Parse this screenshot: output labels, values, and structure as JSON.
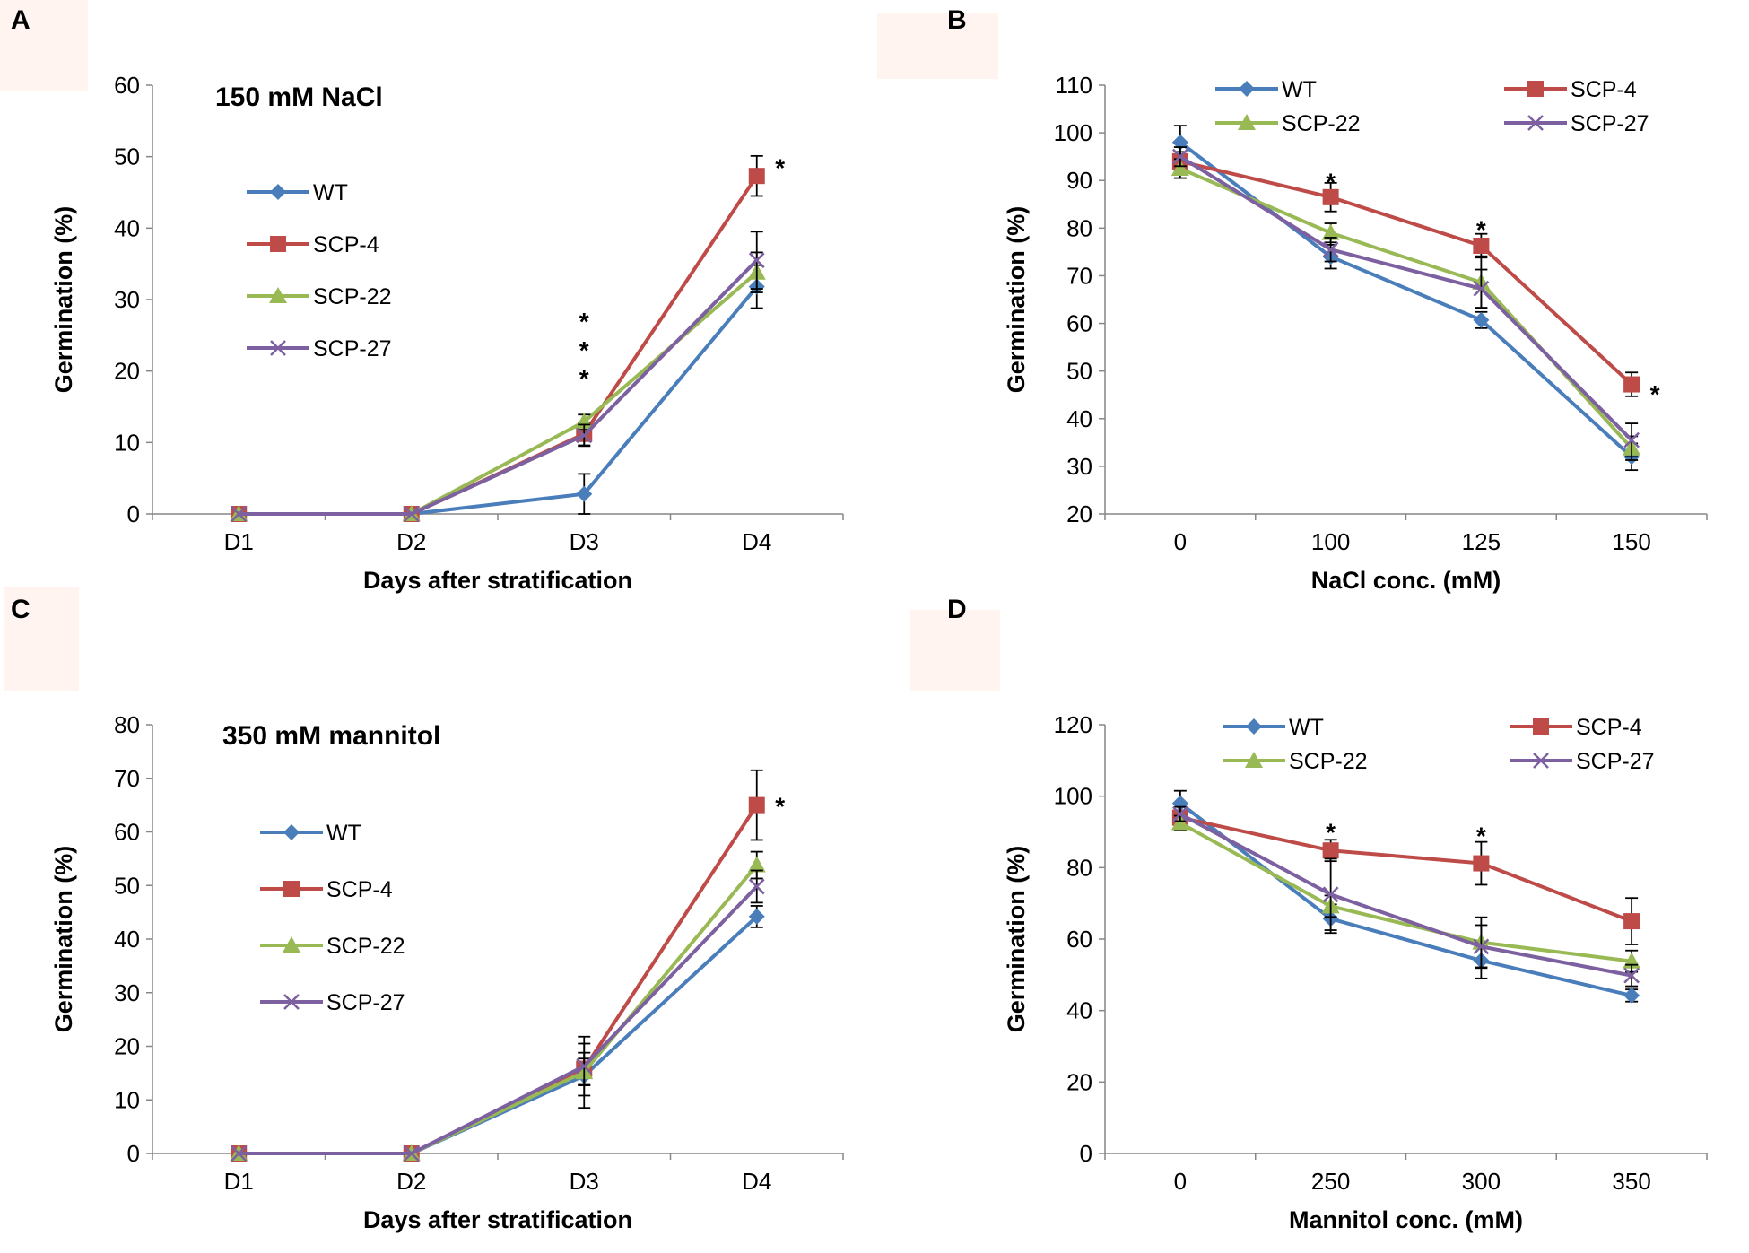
{
  "colors": {
    "WT": "#4a7ebb",
    "SCP-4": "#be4b48",
    "SCP-22": "#98b954",
    "SCP-27": "#7d60a0",
    "axis": "#868686",
    "panel_bg": "#fff4f0"
  },
  "chart_data": [
    {
      "id": "A",
      "panel_label": "A",
      "type": "line",
      "title": "150 mM NaCl",
      "xlabel": "Days after stratification",
      "ylabel": "Germination (%)",
      "categories": [
        "D1",
        "D2",
        "D3",
        "D4"
      ],
      "ylim": [
        0,
        60
      ],
      "ytick_step": 10,
      "legend_position": "left-stacked",
      "series": [
        {
          "name": "WT",
          "marker": "diamond",
          "values": [
            0,
            0,
            2.8,
            31.8
          ],
          "errors": [
            0,
            0,
            2.8,
            3
          ]
        },
        {
          "name": "SCP-4",
          "marker": "square",
          "values": [
            0,
            0,
            11.2,
            47.3
          ],
          "errors": [
            0,
            0,
            1.6,
            2.8
          ]
        },
        {
          "name": "SCP-22",
          "marker": "triangle",
          "values": [
            0,
            0,
            12.9,
            33.8
          ],
          "errors": [
            0,
            0,
            1,
            2.8
          ]
        },
        {
          "name": "SCP-27",
          "marker": "x",
          "values": [
            0,
            0,
            11,
            35.5
          ],
          "errors": [
            0,
            0,
            1.5,
            4
          ]
        }
      ],
      "annotations": [
        {
          "x": "D3",
          "y": 27.5,
          "text": "*"
        },
        {
          "x": "D3",
          "y": 23.5,
          "text": "*"
        },
        {
          "x": "D3",
          "y": 19.5,
          "text": "*"
        },
        {
          "x": "D4",
          "y": 49,
          "text": "*",
          "offset": "right"
        }
      ]
    },
    {
      "id": "B",
      "panel_label": "B",
      "type": "line",
      "title": "",
      "xlabel": "NaCl conc. (mM)",
      "ylabel": "Germination (%)",
      "categories": [
        "0",
        "100",
        "125",
        "150"
      ],
      "ylim": [
        20,
        110
      ],
      "ytick_step": 10,
      "legend_position": "top-two-columns",
      "series": [
        {
          "name": "WT",
          "marker": "diamond",
          "values": [
            98,
            74,
            60.7,
            32
          ],
          "errors": [
            3.5,
            2.5,
            1.7,
            2.8
          ]
        },
        {
          "name": "SCP-4",
          "marker": "square",
          "values": [
            94,
            86.5,
            76.3,
            47.2
          ],
          "errors": [
            2,
            3,
            2.5,
            2.5
          ]
        },
        {
          "name": "SCP-22",
          "marker": "triangle",
          "values": [
            92.5,
            79,
            68.6,
            33.8
          ],
          "errors": [
            2,
            2,
            5.5,
            2.5
          ]
        },
        {
          "name": "SCP-27",
          "marker": "x",
          "values": [
            95,
            75.5,
            67.3,
            35.5
          ],
          "errors": [
            2,
            2.5,
            4,
            3.5
          ]
        }
      ],
      "annotations": [
        {
          "x": "100",
          "y": 90.5,
          "text": "*"
        },
        {
          "x": "125",
          "y": 80.5,
          "text": "*"
        },
        {
          "x": "150",
          "y": 46,
          "text": "*",
          "offset": "right"
        }
      ]
    },
    {
      "id": "C",
      "panel_label": "C",
      "type": "line",
      "title": "350 mM mannitol",
      "xlabel": "Days after stratification",
      "ylabel": "Germination (%)",
      "categories": [
        "D1",
        "D2",
        "D3",
        "D4"
      ],
      "ylim": [
        0,
        80
      ],
      "ytick_step": 10,
      "legend_position": "left-stacked",
      "series": [
        {
          "name": "WT",
          "marker": "diamond",
          "values": [
            0,
            0,
            14.5,
            44.2
          ],
          "errors": [
            0,
            0,
            6,
            2
          ]
        },
        {
          "name": "SCP-4",
          "marker": "square",
          "values": [
            0,
            0,
            15.8,
            65
          ],
          "errors": [
            0,
            0,
            3,
            6.5
          ]
        },
        {
          "name": "SCP-22",
          "marker": "triangle",
          "values": [
            0,
            0,
            15.2,
            53.8
          ],
          "errors": [
            0,
            0,
            2.5,
            2.5
          ]
        },
        {
          "name": "SCP-27",
          "marker": "x",
          "values": [
            0,
            0,
            16.3,
            49.8
          ],
          "errors": [
            0,
            0,
            5.5,
            3
          ]
        }
      ],
      "annotations": [
        {
          "x": "D4",
          "y": 65.5,
          "text": "*",
          "offset": "right"
        }
      ]
    },
    {
      "id": "D",
      "panel_label": "D",
      "type": "line",
      "title": "",
      "xlabel": "Mannitol conc. (mM)",
      "ylabel": "Germination (%)",
      "categories": [
        "0",
        "250",
        "300",
        "350"
      ],
      "ylim": [
        0,
        120
      ],
      "ytick_step": 20,
      "legend_position": "top-two-columns",
      "series": [
        {
          "name": "WT",
          "marker": "diamond",
          "values": [
            98,
            65.7,
            54,
            44.2
          ],
          "errors": [
            3.5,
            4,
            5,
            1.7
          ]
        },
        {
          "name": "SCP-4",
          "marker": "square",
          "values": [
            94,
            84.8,
            81.2,
            65
          ],
          "errors": [
            2,
            3,
            6,
            6.5
          ]
        },
        {
          "name": "SCP-22",
          "marker": "triangle",
          "values": [
            92.5,
            69.2,
            59.1,
            53.8
          ],
          "errors": [
            2,
            3,
            7,
            3
          ]
        },
        {
          "name": "SCP-27",
          "marker": "x",
          "values": [
            95,
            72.5,
            57.9,
            49.8
          ],
          "errors": [
            2,
            10,
            6,
            3
          ]
        }
      ],
      "annotations": [
        {
          "x": "250",
          "y": 91,
          "text": "*"
        },
        {
          "x": "300",
          "y": 90,
          "text": "*"
        }
      ]
    }
  ]
}
